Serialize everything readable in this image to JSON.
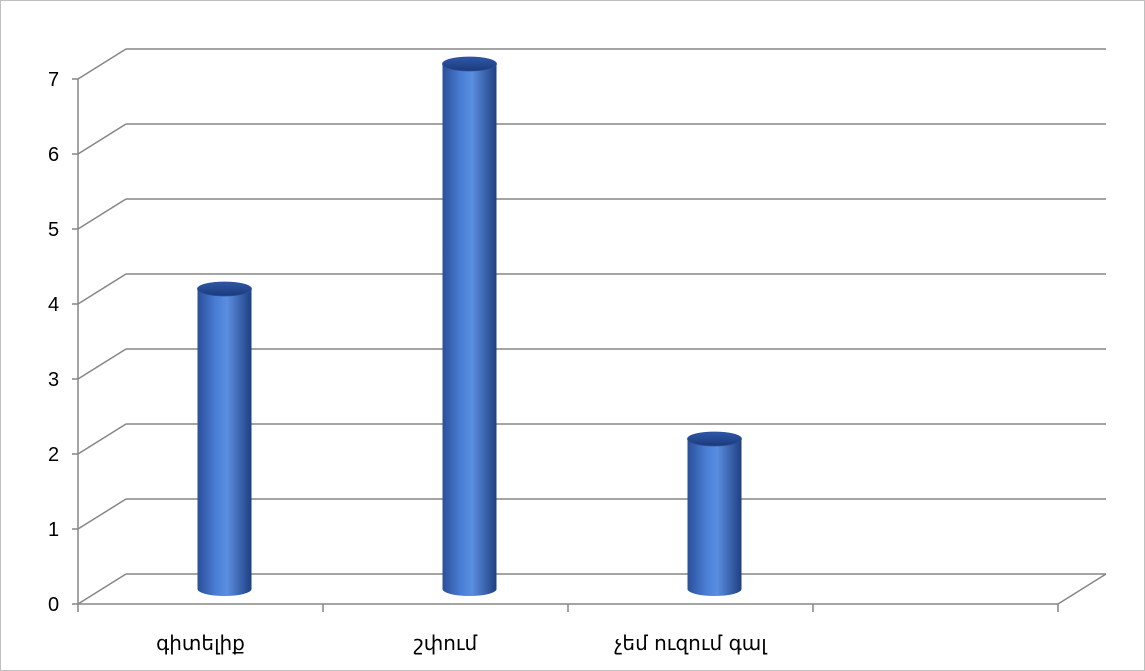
{
  "chart_data": {
    "type": "bar",
    "title": "",
    "xlabel": "",
    "ylabel": "",
    "categories": [
      "գիտելիք",
      "շփում",
      "չեմ ուզում գալ",
      ""
    ],
    "values": [
      4,
      7,
      2,
      null
    ],
    "ylim": [
      0,
      7
    ],
    "yticks": [
      "0",
      "1",
      "2",
      "3",
      "4",
      "5",
      "6",
      "7"
    ],
    "grid": true,
    "style": "3d-cylinder",
    "bar_color": "#3f6fc9"
  }
}
